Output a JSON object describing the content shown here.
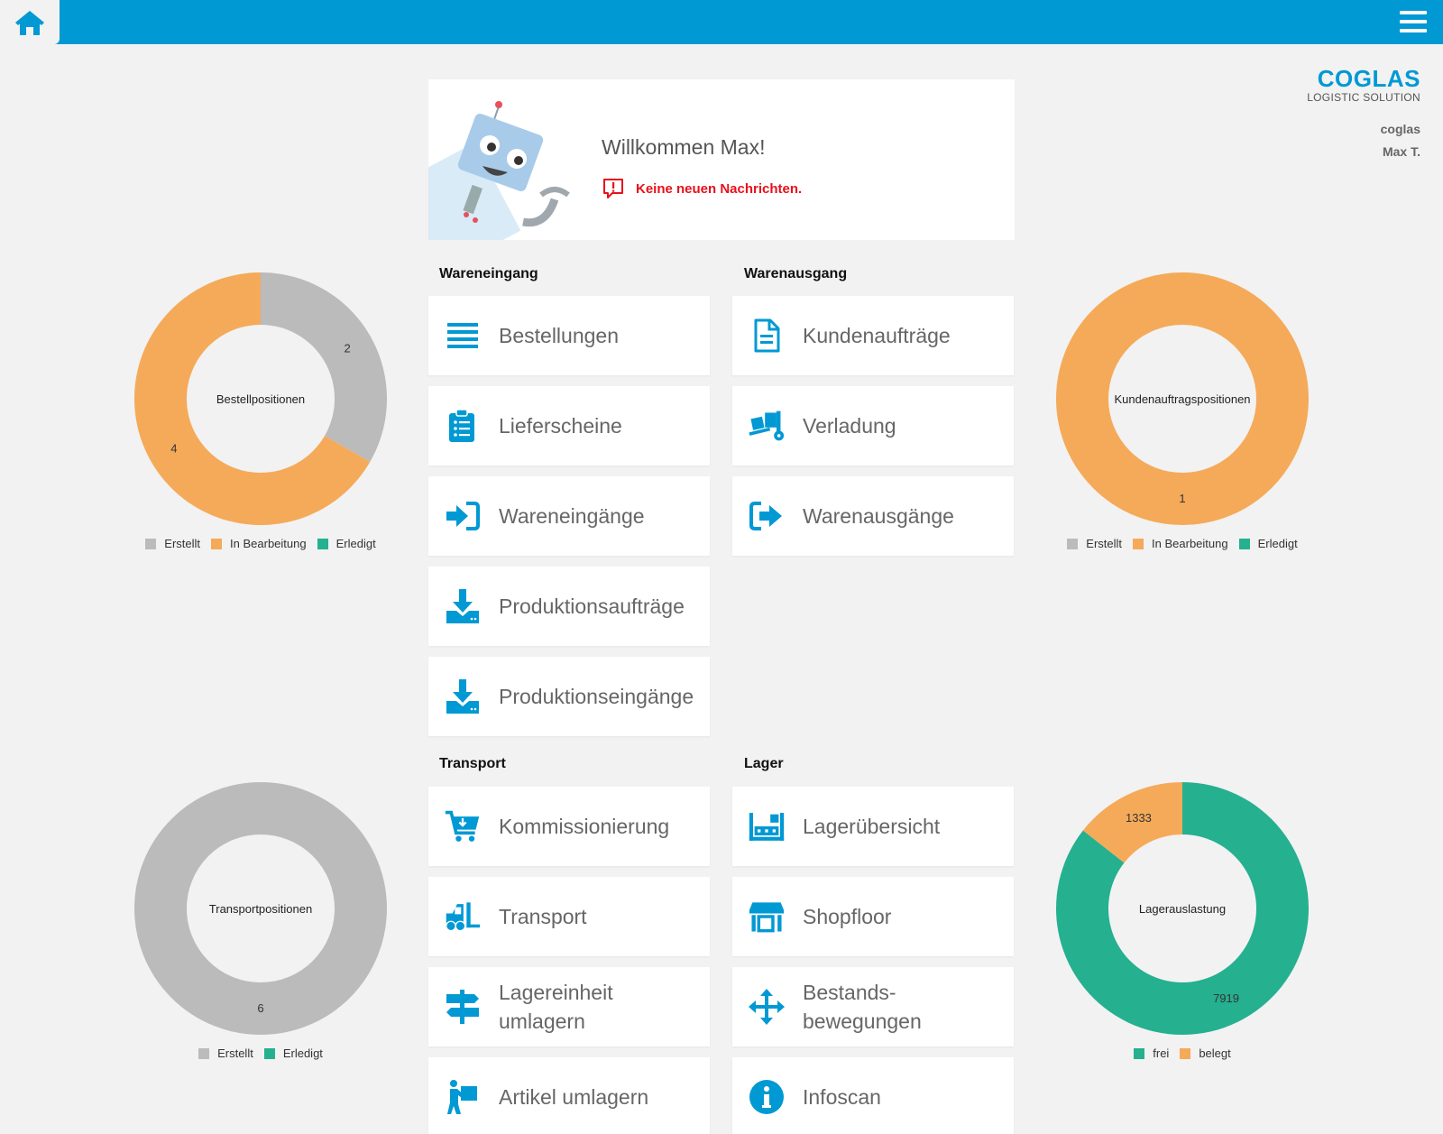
{
  "colors": {
    "accent": "#0099d4",
    "created": "#bbbbbb",
    "in_progress": "#f5aa5a",
    "done": "#25b090",
    "alert": "#e8101b"
  },
  "topbar": {
    "home_icon": "home-icon",
    "menu_icon": "hamburger-menu-icon"
  },
  "brand": {
    "name": "COGLAS",
    "subtitle": "LOGISTIC SOLUTION",
    "company": "coglas",
    "user": "Max T."
  },
  "welcome": {
    "title": "Willkommen Max!",
    "message": "Keine neuen Nachrichten."
  },
  "sections": {
    "wareneingang": {
      "title": "Wareneingang",
      "items": [
        {
          "label": "Bestellungen",
          "icon": "list-icon"
        },
        {
          "label": "Lieferscheine",
          "icon": "clipboard-list-icon"
        },
        {
          "label": "Wareneingänge",
          "icon": "sign-in-icon"
        },
        {
          "label": "Produktionsaufträge",
          "icon": "download-tray-icon"
        },
        {
          "label": "Produktionseingänge",
          "icon": "download-tray-icon"
        }
      ]
    },
    "warenausgang": {
      "title": "Warenausgang",
      "items": [
        {
          "label": "Kundenaufträge",
          "icon": "document-icon"
        },
        {
          "label": "Verladung",
          "icon": "dolly-icon"
        },
        {
          "label": "Warenausgänge",
          "icon": "sign-out-icon"
        }
      ]
    },
    "transport": {
      "title": "Transport",
      "items": [
        {
          "label": "Kommissionierung",
          "icon": "cart-icon"
        },
        {
          "label": "Transport",
          "icon": "forklift-icon"
        },
        {
          "label": "Lagereinheit umlagern",
          "icon": "signpost-icon"
        },
        {
          "label": "Artikel umlagern",
          "icon": "person-carry-icon"
        }
      ]
    },
    "lager": {
      "title": "Lager",
      "items": [
        {
          "label": "Lagerübersicht",
          "icon": "warehouse-icon"
        },
        {
          "label": "Shopfloor",
          "icon": "store-icon"
        },
        {
          "label": "Bestands-\nbewegungen",
          "icon": "move-arrows-icon"
        },
        {
          "label": "Infoscan",
          "icon": "info-icon"
        }
      ]
    }
  },
  "chart_data": [
    {
      "type": "pie",
      "title": "Bestellpositionen",
      "categories": [
        "Erstellt",
        "In Bearbeitung",
        "Erledigt"
      ],
      "values": [
        2,
        4,
        0
      ],
      "colors": [
        "#bbbbbb",
        "#f5aa5a",
        "#25b090"
      ],
      "legend": "bottom"
    },
    {
      "type": "pie",
      "title": "Kundenauftragspositionen",
      "categories": [
        "Erstellt",
        "In Bearbeitung",
        "Erledigt"
      ],
      "values": [
        0,
        1,
        0
      ],
      "colors": [
        "#bbbbbb",
        "#f5aa5a",
        "#25b090"
      ],
      "legend": "bottom"
    },
    {
      "type": "pie",
      "title": "Transportpositionen",
      "categories": [
        "Erstellt",
        "Erledigt"
      ],
      "values": [
        6,
        0
      ],
      "colors": [
        "#bbbbbb",
        "#25b090"
      ],
      "legend": "bottom"
    },
    {
      "type": "pie",
      "title": "Lagerauslastung",
      "categories": [
        "frei",
        "belegt"
      ],
      "values": [
        7919,
        1333
      ],
      "colors": [
        "#25b090",
        "#f5aa5a"
      ],
      "legend": "bottom"
    }
  ]
}
